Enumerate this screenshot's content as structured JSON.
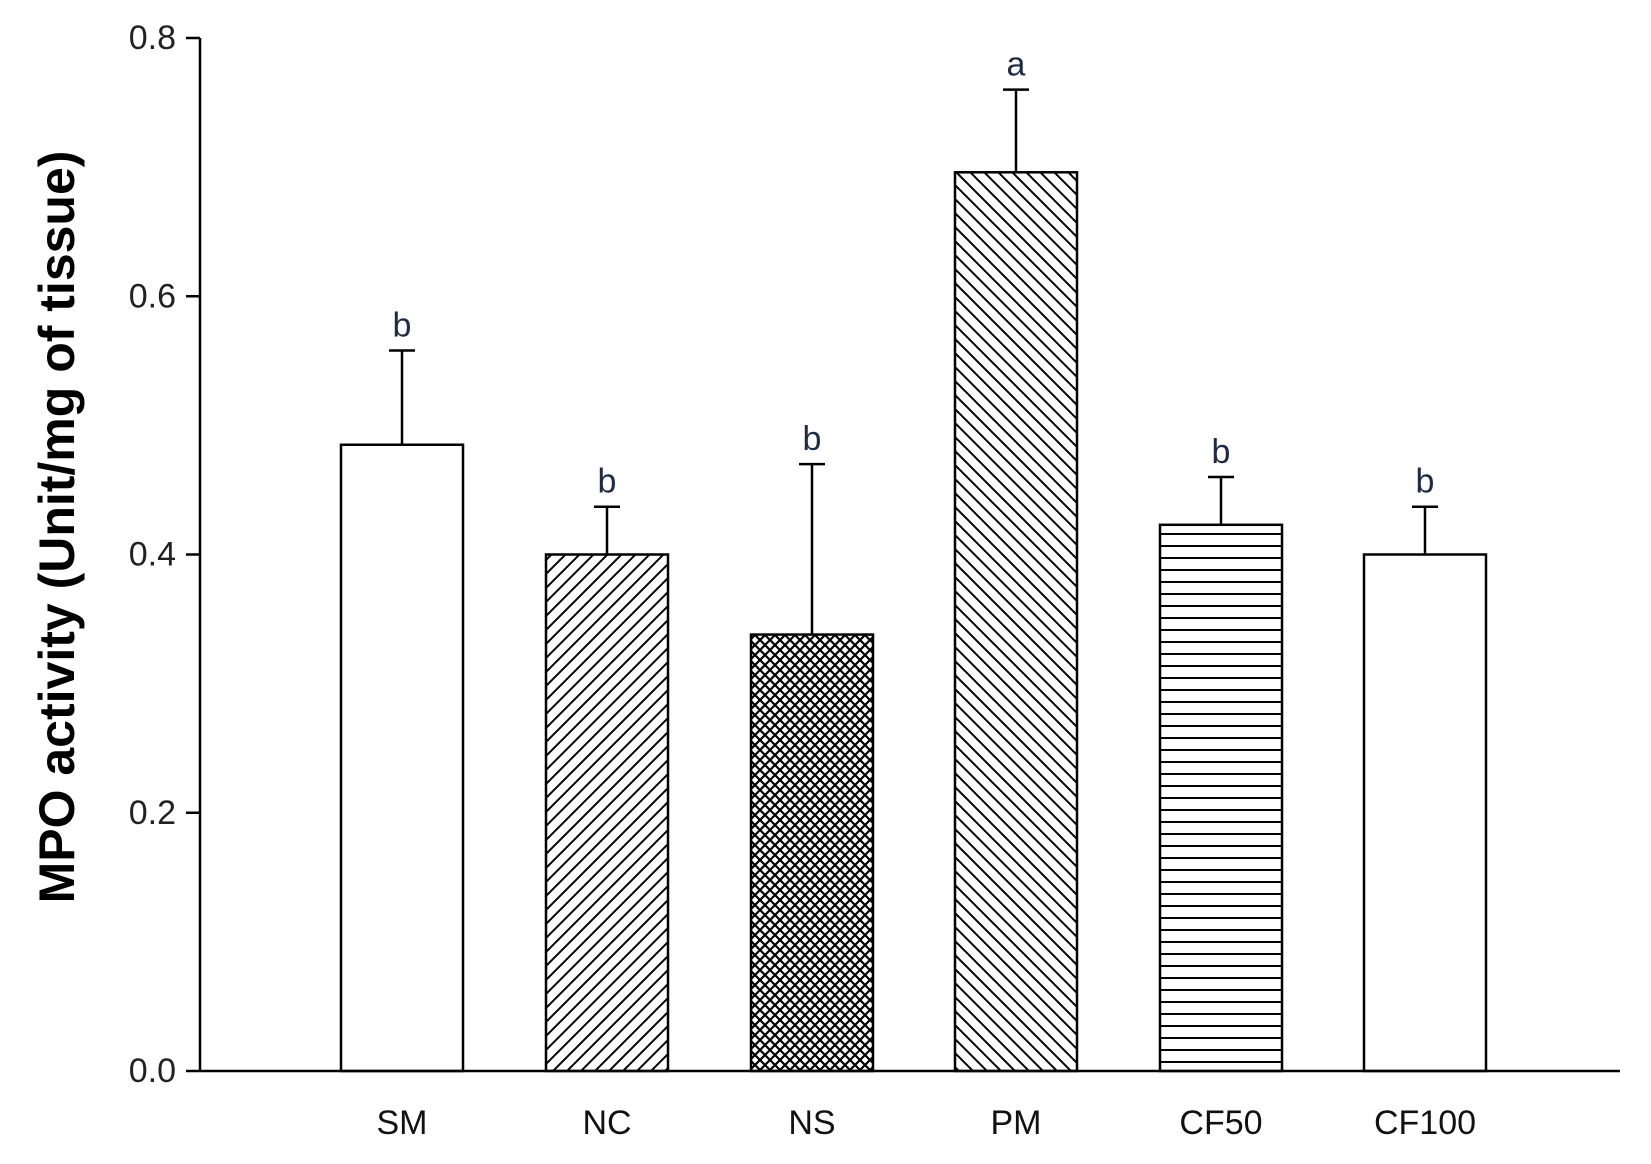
{
  "chart_data": {
    "type": "bar",
    "title": "",
    "xlabel": "",
    "ylabel": "MPO activity (Unit/mg of tissue)",
    "ylim": [
      0,
      0.8
    ],
    "yticks": [
      "0.0",
      "0.2",
      "0.4",
      "0.6",
      "0.8"
    ],
    "ytick_values": [
      0,
      0.2,
      0.4,
      0.6,
      0.8
    ],
    "grid": false,
    "legend": "none",
    "categories": [
      "SM",
      "NC",
      "NS",
      "PM",
      "CF50",
      "CF100"
    ],
    "values": [
      0.485,
      0.4,
      0.338,
      0.696,
      0.423,
      0.4
    ],
    "errors": [
      0.073,
      0.037,
      0.132,
      0.064,
      0.037,
      0.037
    ],
    "significance": [
      "b",
      "b",
      "b",
      "a",
      "b",
      "b"
    ],
    "bar_patterns": [
      "solid",
      "diagonal-up",
      "crosshatch",
      "diagonal-down",
      "horizontal",
      "solid"
    ],
    "colors": {
      "bar_fill": "#ffffff",
      "bar_stroke": "#000000",
      "pattern": "#000000",
      "axis": "#000000",
      "significance_text": "#1f2a44"
    }
  }
}
